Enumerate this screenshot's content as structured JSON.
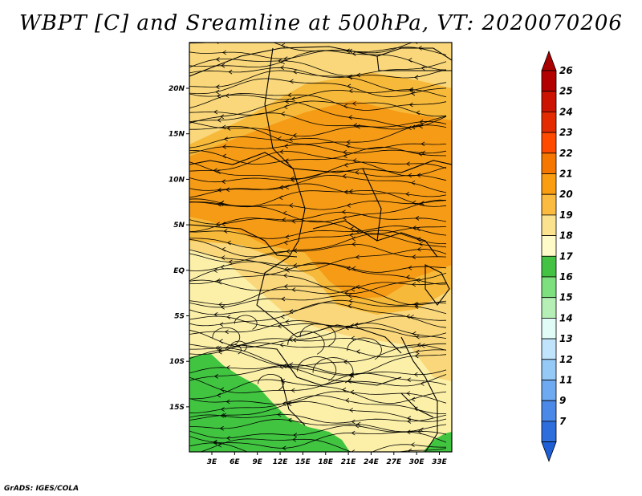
{
  "title": "WBPT [C] and Sreamline at 500hPa, VT: 2020070206",
  "credit": "GrADS: IGES/COLA",
  "map": {
    "lat_ticks": [
      "20N",
      "15N",
      "10N",
      "5N",
      "EQ",
      "5S",
      "10S",
      "15S"
    ],
    "lon_ticks": [
      "3E",
      "6E",
      "9E",
      "12E",
      "15E",
      "18E",
      "21E",
      "24E",
      "27E",
      "30E",
      "33E"
    ],
    "lat_range": [
      -20,
      25
    ],
    "lon_range": [
      0,
      35
    ],
    "colors": {
      "warm_22": "#f59b16",
      "warm_21": "#f6b93a",
      "warm_20": "#f9d77a",
      "cool_19": "#fcf0a8",
      "green_18": "#41c541"
    }
  },
  "colorbar": {
    "labels": [
      "26",
      "25",
      "24",
      "23",
      "22",
      "21",
      "20",
      "19",
      "18",
      "17",
      "16",
      "15",
      "14",
      "13",
      "12",
      "11",
      "9",
      "7"
    ],
    "colors": [
      "#b30000",
      "#cc1200",
      "#e32a00",
      "#ff4a00",
      "#f57700",
      "#fa9d10",
      "#fbba40",
      "#fbe28e",
      "#fefbc8",
      "#44c244",
      "#7ddf7d",
      "#b5efb5",
      "#e1fbf6",
      "#bfe4fb",
      "#95c9f6",
      "#6eaaf1",
      "#4a89e8",
      "#2d6ddc"
    ],
    "top_arrow": "#a80000",
    "bottom_arrow": "#1e5fd6"
  }
}
